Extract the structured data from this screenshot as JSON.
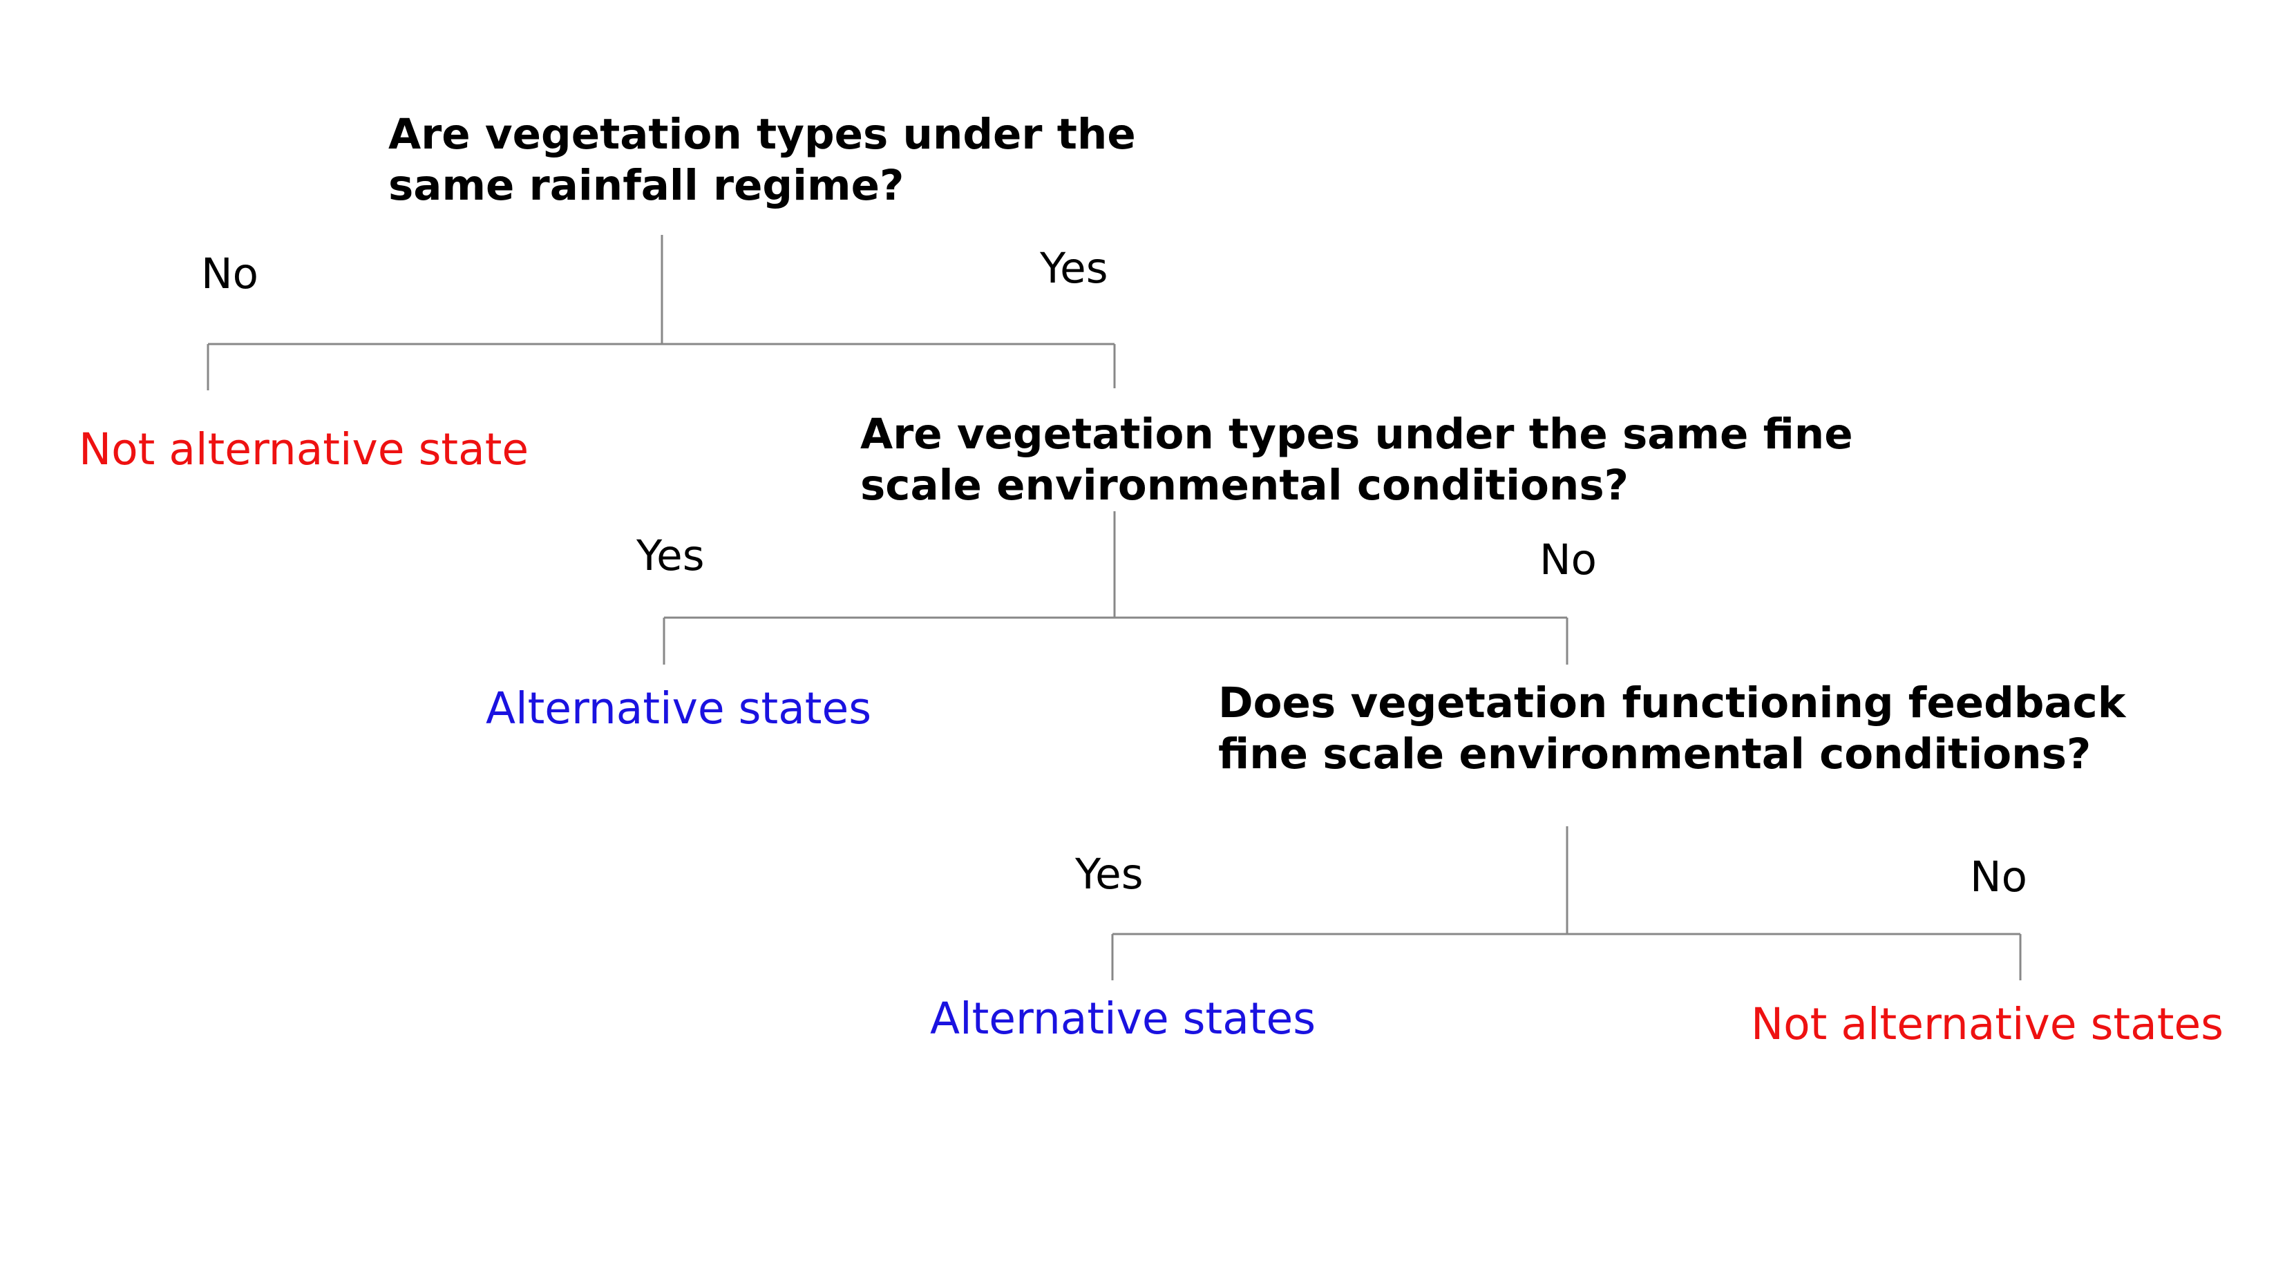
{
  "colors": {
    "line": "#888888",
    "question_text": "#000000",
    "not_alternative": "#ee1111",
    "alternative": "#1a12e0"
  },
  "q1": {
    "line1": "Are vegetation types under the",
    "line2": "same rainfall regime?",
    "no_label": "No",
    "yes_label": "Yes",
    "no_outcome": "Not alternative state"
  },
  "q2": {
    "line1": "Are vegetation types under the same fine",
    "line2": "scale environmental conditions?",
    "yes_label": "Yes",
    "no_label": "No",
    "yes_outcome": "Alternative states"
  },
  "q3": {
    "line1": "Does vegetation functioning feedback",
    "line2": "fine scale environmental conditions?",
    "yes_label": "Yes",
    "no_label": "No",
    "yes_outcome": "Alternative states",
    "no_outcome": "Not alternative states"
  }
}
